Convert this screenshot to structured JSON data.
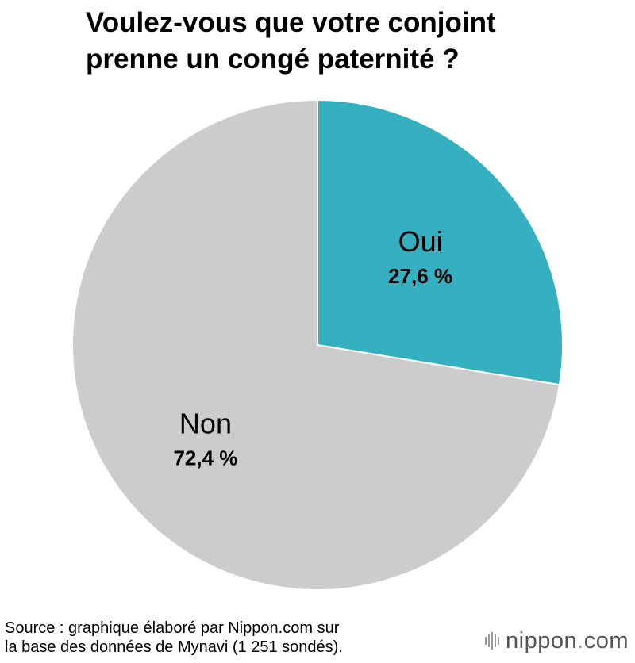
{
  "title_lines": [
    "Voulez-vous que votre conjoint",
    "prenne un congé paternité ?"
  ],
  "chart_data": {
    "type": "pie",
    "title": "Voulez-vous que votre conjoint prenne un congé paternité ?",
    "slices": [
      {
        "label": "Oui",
        "value": 27.6,
        "value_label": "27,6 %",
        "color": "#35b0c0"
      },
      {
        "label": "Non",
        "value": 72.4,
        "value_label": "72,4 %",
        "color": "#cccccc"
      }
    ],
    "start": "12 o'clock",
    "direction": "clockwise"
  },
  "source_lines": [
    "Source : graphique élaboré par Nippon.com sur",
    "la base des données de Mynavi (1 251 sondés)."
  ],
  "brand": {
    "name": "nippon",
    "dot": ".",
    "suffix": "com"
  }
}
